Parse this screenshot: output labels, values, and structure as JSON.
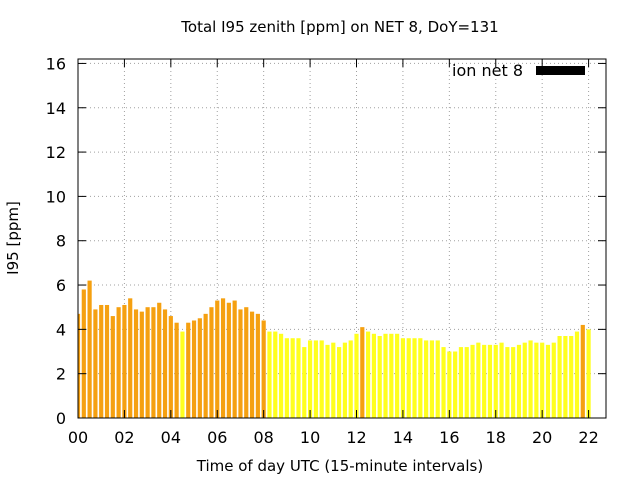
{
  "chart_data": {
    "type": "bar",
    "title": "Total I95 zenith [ppm] on NET 8, DoY=131",
    "xlabel": "Time of day UTC (15-minute intervals)",
    "ylabel": "I95 [ppm]",
    "xlim": [
      0,
      22.75
    ],
    "ylim": [
      0,
      16.2
    ],
    "x_ticks": [
      "00",
      "02",
      "04",
      "06",
      "08",
      "10",
      "12",
      "14",
      "16",
      "18",
      "20",
      "22"
    ],
    "y_ticks": [
      0,
      2,
      4,
      6,
      8,
      10,
      12,
      14,
      16
    ],
    "grid": true,
    "legend": {
      "label": "ion net 8",
      "position": "top-right",
      "color": "#000000"
    },
    "colors": {
      "orange": "#f5a010",
      "yellow": "#ffff1e",
      "axis": "#000000",
      "grid": "#a0a0a0"
    },
    "interval_hours": 0.25,
    "values": [
      4.7,
      5.8,
      6.2,
      4.9,
      5.1,
      5.1,
      4.6,
      5.0,
      5.1,
      5.4,
      4.9,
      4.8,
      5.0,
      5.0,
      5.2,
      4.9,
      4.6,
      4.3,
      3.9,
      4.3,
      4.4,
      4.5,
      4.7,
      5.0,
      5.3,
      5.4,
      5.2,
      5.3,
      4.9,
      5.0,
      4.8,
      4.7,
      4.4,
      3.9,
      3.9,
      3.8,
      3.6,
      3.6,
      3.6,
      3.2,
      3.5,
      3.5,
      3.5,
      3.3,
      3.4,
      3.2,
      3.4,
      3.5,
      3.8,
      4.1,
      3.9,
      3.8,
      3.7,
      3.8,
      3.8,
      3.8,
      3.6,
      3.6,
      3.6,
      3.6,
      3.5,
      3.5,
      3.5,
      3.2,
      3.0,
      3.0,
      3.2,
      3.2,
      3.3,
      3.4,
      3.3,
      3.3,
      3.3,
      3.4,
      3.2,
      3.2,
      3.3,
      3.4,
      3.5,
      3.4,
      3.4,
      3.3,
      3.4,
      3.7,
      3.7,
      3.7,
      3.9,
      4.2,
      4.0
    ],
    "bar_color_keys": [
      "orange",
      "orange",
      "orange",
      "orange",
      "orange",
      "orange",
      "orange",
      "orange",
      "orange",
      "orange",
      "orange",
      "orange",
      "orange",
      "orange",
      "orange",
      "orange",
      "orange",
      "orange",
      "yellow",
      "orange",
      "orange",
      "orange",
      "orange",
      "orange",
      "orange",
      "orange",
      "orange",
      "orange",
      "orange",
      "orange",
      "orange",
      "orange",
      "orange",
      "yellow",
      "yellow",
      "yellow",
      "yellow",
      "yellow",
      "yellow",
      "yellow",
      "yellow",
      "yellow",
      "yellow",
      "yellow",
      "yellow",
      "yellow",
      "yellow",
      "yellow",
      "yellow",
      "orange",
      "yellow",
      "yellow",
      "yellow",
      "yellow",
      "yellow",
      "yellow",
      "yellow",
      "yellow",
      "yellow",
      "yellow",
      "yellow",
      "yellow",
      "yellow",
      "yellow",
      "yellow",
      "yellow",
      "yellow",
      "yellow",
      "yellow",
      "yellow",
      "yellow",
      "yellow",
      "yellow",
      "yellow",
      "yellow",
      "yellow",
      "yellow",
      "yellow",
      "yellow",
      "yellow",
      "yellow",
      "yellow",
      "yellow",
      "yellow",
      "yellow",
      "yellow",
      "yellow",
      "orange",
      "yellow"
    ]
  }
}
